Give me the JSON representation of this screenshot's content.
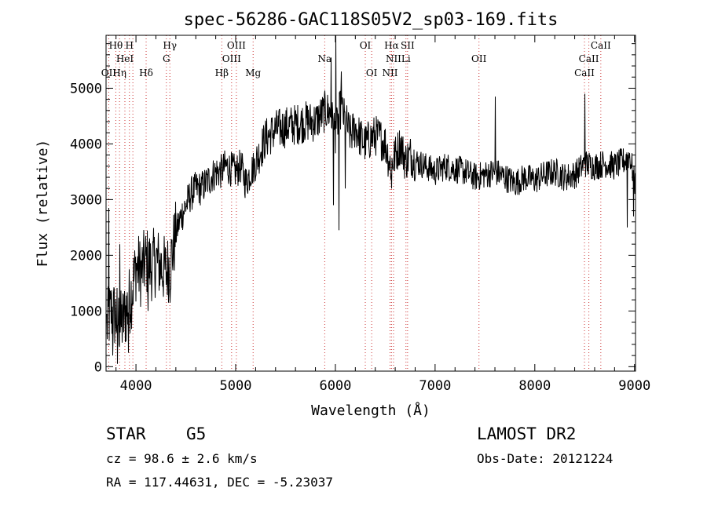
{
  "chart_data": {
    "type": "line",
    "title": "spec-56286-GAC118S05V2_sp03-169.fits",
    "xlabel": "Wavelength (Å)",
    "ylabel": "Flux (relative)",
    "xlim": [
      3700,
      9010
    ],
    "ylim": [
      -80,
      5950
    ],
    "xticks": [
      4000,
      5000,
      6000,
      7000,
      8000,
      9000
    ],
    "yticks": [
      0,
      1000,
      2000,
      3000,
      4000,
      5000
    ],
    "grid": false,
    "series": [
      {
        "x": [
          3700,
          3750,
          3800,
          3850,
          3900,
          3950,
          4000,
          4050,
          4100,
          4150,
          4200,
          4250,
          4300,
          4350,
          4400,
          4450,
          4500,
          4550,
          4600,
          4650,
          4700,
          4750,
          4800,
          4850,
          4900,
          4950,
          5000,
          5050,
          5100,
          5150,
          5200,
          5250,
          5300,
          5400,
          5500,
          5600,
          5700,
          5800,
          5850,
          5900,
          5950,
          6000,
          6050,
          6100,
          6150,
          6200,
          6250,
          6300,
          6350,
          6400,
          6450,
          6500,
          6550,
          6600,
          6650,
          6700,
          6750,
          6800,
          6900,
          7000,
          7100,
          7200,
          7300,
          7400,
          7500,
          7600,
          7700,
          7800,
          7900,
          8000,
          8100,
          8200,
          8300,
          8400,
          8500,
          8600,
          8700,
          8800,
          8900,
          8950,
          9000
        ],
        "y": [
          700,
          1000,
          900,
          750,
          1000,
          1300,
          1800,
          1700,
          1900,
          1800,
          1900,
          1800,
          1700,
          1900,
          2400,
          2700,
          2900,
          3100,
          3200,
          3200,
          3300,
          3400,
          3500,
          3500,
          3600,
          3550,
          3500,
          3600,
          3300,
          3500,
          3650,
          3900,
          4100,
          4250,
          4300,
          4350,
          4400,
          4400,
          4500,
          4600,
          4550,
          4200,
          4650,
          4400,
          4150,
          4300,
          4100,
          4000,
          4100,
          4150,
          4100,
          4000,
          3600,
          3800,
          4000,
          3700,
          3800,
          3700,
          3600,
          3500,
          3600,
          3550,
          3500,
          3400,
          3450,
          3500,
          3400,
          3300,
          3400,
          3350,
          3450,
          3500,
          3400,
          3450,
          3650,
          3600,
          3650,
          3600,
          3700,
          3800,
          3300
        ],
        "spikes": [
          {
            "x": 3725,
            "y": 2850
          },
          {
            "x": 3765,
            "y": 200
          },
          {
            "x": 3810,
            "y": 50
          },
          {
            "x": 3835,
            "y": 2200
          },
          {
            "x": 3920,
            "y": 250
          },
          {
            "x": 4120,
            "y": 1000
          },
          {
            "x": 4340,
            "y": 1150
          },
          {
            "x": 5950,
            "y": 5550
          },
          {
            "x": 5980,
            "y": 2900
          },
          {
            "x": 6000,
            "y": 5950
          },
          {
            "x": 6035,
            "y": 2450
          },
          {
            "x": 6055,
            "y": 5300
          },
          {
            "x": 6095,
            "y": 3200
          },
          {
            "x": 6563,
            "y": 3200
          },
          {
            "x": 7600,
            "y": 4850
          },
          {
            "x": 8495,
            "y": 4900
          },
          {
            "x": 8920,
            "y": 2500
          },
          {
            "x": 8990,
            "y": 2700
          }
        ]
      }
    ],
    "lines": [
      {
        "x": 3727,
        "label": "OII",
        "row": 3
      },
      {
        "x": 3798,
        "label": "Hθ",
        "row": 1
      },
      {
        "x": 3835,
        "label": "Hη",
        "row": 3
      },
      {
        "x": 3889,
        "label": "HeI",
        "row": 2
      },
      {
        "x": 3934,
        "label": "H",
        "row": 1
      },
      {
        "x": 3969,
        "label": "",
        "row": 0
      },
      {
        "x": 4102,
        "label": "Hδ",
        "row": 3
      },
      {
        "x": 4305,
        "label": "G",
        "row": 2
      },
      {
        "x": 4340,
        "label": "Hγ",
        "row": 1
      },
      {
        "x": 4861,
        "label": "Hβ",
        "row": 3
      },
      {
        "x": 4959,
        "label": "OIII",
        "row": 2
      },
      {
        "x": 5007,
        "label": "OIII",
        "row": 1
      },
      {
        "x": 5175,
        "label": "Mg",
        "row": 3
      },
      {
        "x": 5893,
        "label": "Na",
        "row": 2
      },
      {
        "x": 6300,
        "label": "OI",
        "row": 1
      },
      {
        "x": 6364,
        "label": "OI",
        "row": 3
      },
      {
        "x": 6548,
        "label": "NII",
        "row": 3
      },
      {
        "x": 6563,
        "label": "Hα",
        "row": 1
      },
      {
        "x": 6583,
        "label": "NII",
        "row": 2
      },
      {
        "x": 6708,
        "label": "Li",
        "row": 2
      },
      {
        "x": 6724,
        "label": "SII",
        "row": 1
      },
      {
        "x": 7440,
        "label": "OII",
        "row": 2
      },
      {
        "x": 8498,
        "label": "CaII",
        "row": 3
      },
      {
        "x": 8542,
        "label": "CaII",
        "row": 2
      },
      {
        "x": 8662,
        "label": "CaII",
        "row": 1
      }
    ]
  },
  "info": {
    "object_class": "STAR",
    "subclass": "G5",
    "survey": "LAMOST DR2",
    "cz": "cz = 98.6 ± 2.6 km/s",
    "obs_date": "Obs-Date: 20121224",
    "coords": "RA = 117.44631, DEC =  -5.23037"
  },
  "colors": {
    "spectrum": "#000000",
    "line_markers": "#cc3333",
    "background": "#ffffff"
  }
}
